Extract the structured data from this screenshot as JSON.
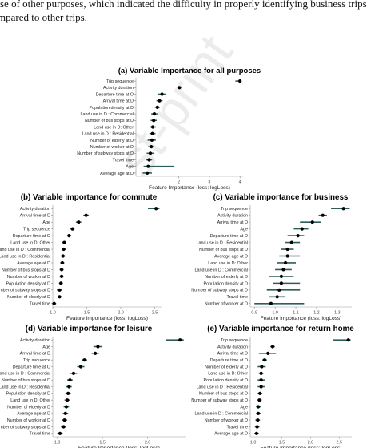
{
  "intro_lines": [
    "se of other purposes, which indicated the difficulty in properly identifying business trips",
    "mpared to other trips."
  ],
  "watermark": "st-print",
  "chart_data": [
    {
      "type": "dot_errorbar",
      "title": "(a) Variable Importance for all purposes",
      "xlabel": "Feature Importance  (loss: logLoss)",
      "xlim": [
        0.6,
        4.1
      ],
      "xticks": [
        2,
        3,
        4
      ],
      "features": [
        "Trip sequence",
        "Activity duration",
        "Departure  time at O",
        "Arrival time  at D",
        "Population density at D",
        "Land use in  D : Commercial",
        "Number of bus stops at D",
        "Land use in  D: Other",
        "Land use in D : Residential",
        "Number of elderly at D",
        "Number of worker at D",
        "Number of subway stops at D",
        "Travel  time",
        "Age",
        "Average age at D"
      ],
      "values": [
        4.0,
        2.02,
        1.45,
        1.37,
        1.3,
        1.2,
        1.18,
        1.15,
        1.14,
        1.12,
        1.1,
        1.07,
        1.03,
        1.0,
        0.97
      ],
      "lower": [
        3.85,
        1.95,
        1.32,
        1.27,
        1.22,
        1.1,
        1.08,
        1.05,
        1.04,
        0.98,
        1.0,
        0.95,
        0.93,
        0.85,
        0.82
      ],
      "upper": [
        4.05,
        2.08,
        1.58,
        1.47,
        1.38,
        1.3,
        1.28,
        1.25,
        1.24,
        1.25,
        1.2,
        1.19,
        1.13,
        1.85,
        1.12
      ]
    },
    {
      "type": "dot_errorbar",
      "title": "(b) Variable importance for commute",
      "xlabel": "Feature Importance  (loss: logLoss)",
      "xlim": [
        1.0,
        2.6
      ],
      "xticks": [
        1.0,
        1.5,
        2.0,
        2.5
      ],
      "features": [
        "Activity duration",
        "Arrival time at D",
        "Age",
        "Trip sequence",
        "Departure  time at O",
        "Land use in  D: Other",
        "Land use in  D : Commercial",
        "Land use in D : Residential",
        "Average age at D",
        "Number of bus stops at D",
        "Number of worker at D",
        "Population density at D",
        "Number of subway stops at D",
        "Number of elderly at D",
        "Travel  time"
      ],
      "values": [
        2.52,
        1.49,
        1.38,
        1.29,
        1.24,
        1.17,
        1.16,
        1.15,
        1.14,
        1.13,
        1.13,
        1.12,
        1.1,
        1.1,
        1.02
      ],
      "lower": [
        2.4,
        1.45,
        1.34,
        1.26,
        1.21,
        1.14,
        1.13,
        1.12,
        1.11,
        1.1,
        1.1,
        1.09,
        1.06,
        1.07,
        0.99
      ],
      "upper": [
        2.57,
        1.53,
        1.42,
        1.32,
        1.27,
        1.2,
        1.19,
        1.18,
        1.17,
        1.16,
        1.16,
        1.15,
        1.14,
        1.13,
        1.05
      ]
    },
    {
      "type": "dot_errorbar",
      "title": "(c) Variable importance for business",
      "xlabel": "Feature Importance  (loss: logLoss)",
      "xlim": [
        0.88,
        1.37
      ],
      "xticks": [
        0.9,
        1.0,
        1.1,
        1.2,
        1.3
      ],
      "features": [
        "Trip sequence",
        "Activity duration",
        "Arrival time at D",
        "Age",
        "Departure  time at O",
        "Land use in D : Residential",
        "Number of bus stops at D",
        "Average age at D",
        "Land use in  D: Other",
        "Land use in  D : Commercial",
        "Number of elderly at D",
        "Population density at D",
        "Number of subway stops at D",
        "Travel  time",
        "Number of worker at D"
      ],
      "values": [
        1.33,
        1.23,
        1.18,
        1.13,
        1.11,
        1.08,
        1.06,
        1.06,
        1.05,
        1.04,
        1.03,
        1.03,
        1.02,
        1.01,
        0.98
      ],
      "lower": [
        1.27,
        1.21,
        1.12,
        1.09,
        1.06,
        1.05,
        1.03,
        1.02,
        1.01,
        1.0,
        0.97,
        0.99,
        0.96,
        0.97,
        0.9
      ],
      "upper": [
        1.36,
        1.25,
        1.22,
        1.16,
        1.14,
        1.12,
        1.09,
        1.12,
        1.1,
        1.08,
        1.09,
        1.12,
        1.12,
        1.05,
        1.14
      ]
    },
    {
      "type": "dot_errorbar",
      "title": "(d) Variable importance for leisure",
      "xlabel": "Feature Importance  (loss: logLoss)",
      "xlim": [
        0.95,
        2.42
      ],
      "xticks": [
        1.0,
        1.5,
        2.0
      ],
      "features": [
        "Activity duration",
        "Age",
        "Arrival time  at D",
        "Trip sequence",
        "Departure  time at O",
        "Land use in  D : Commercial",
        "Number of bus stops at D",
        "Land use in D : Residential",
        "Population density at D",
        "Land use in  D: Other",
        "Number of elderly at D",
        "Average age at D",
        "Number of worker at D",
        "Number of subway stops at D",
        "Travel  time"
      ],
      "values": [
        2.36,
        1.45,
        1.42,
        1.3,
        1.26,
        1.18,
        1.14,
        1.13,
        1.12,
        1.11,
        1.1,
        1.09,
        1.08,
        1.07,
        1.03
      ],
      "lower": [
        2.2,
        1.4,
        1.38,
        1.27,
        1.22,
        1.14,
        1.11,
        1.1,
        1.09,
        1.08,
        1.07,
        1.06,
        1.05,
        1.04,
        1.0
      ],
      "upper": [
        2.4,
        1.5,
        1.46,
        1.33,
        1.3,
        1.22,
        1.17,
        1.16,
        1.15,
        1.14,
        1.13,
        1.12,
        1.11,
        1.1,
        1.06
      ]
    },
    {
      "type": "dot_errorbar",
      "title": "(e) Variable importance for return home",
      "xlabel": "Feature Importance  (loss: logLoss)",
      "xlim": [
        0.95,
        2.72
      ],
      "xticks": [
        1.0,
        1.5,
        2.0,
        2.5
      ],
      "features": [
        "Trip sequence",
        "Activity duration",
        "Arrival time at D",
        "Departure  time at O",
        "Number of elderly at D",
        "Land use in  D: Other",
        "Population density at D",
        "Land use in D : Residential",
        "Number of bus stops at D",
        "Number of subway stops at D",
        "Age",
        "Land use in  D : Commercial",
        "Number of worker at D",
        "Travel  time",
        "Average age at D"
      ],
      "values": [
        2.66,
        1.34,
        1.26,
        1.2,
        1.15,
        1.14,
        1.14,
        1.14,
        1.12,
        1.11,
        1.09,
        1.09,
        1.08,
        1.07,
        1.06
      ],
      "lower": [
        2.4,
        1.3,
        1.1,
        1.16,
        1.08,
        1.1,
        1.08,
        1.08,
        1.08,
        1.07,
        1.05,
        1.05,
        1.04,
        1.03,
        1.02
      ],
      "upper": [
        2.7,
        1.38,
        1.4,
        1.24,
        1.22,
        1.18,
        1.2,
        1.2,
        1.16,
        1.15,
        1.13,
        1.13,
        1.12,
        1.11,
        1.1
      ]
    }
  ]
}
